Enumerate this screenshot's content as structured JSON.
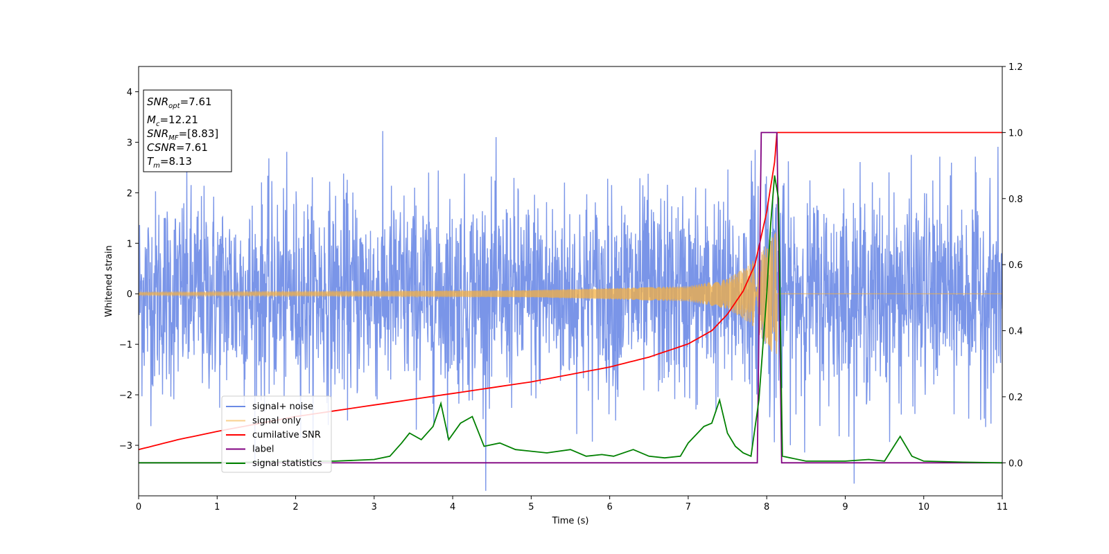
{
  "chart_data": {
    "type": "line",
    "xlabel": "Time (s)",
    "ylabel": "Whitened strain",
    "xlim": [
      0,
      11
    ],
    "ylim_left": [
      -4,
      4.5
    ],
    "ylim_right": [
      -0.1,
      1.2
    ],
    "xticks": [
      "0",
      "1",
      "2",
      "3",
      "4",
      "5",
      "6",
      "7",
      "8",
      "9",
      "10",
      "11"
    ],
    "yticks_left": [
      "−3",
      "−2",
      "−1",
      "0",
      "1",
      "2",
      "3",
      "4"
    ],
    "yticks_right": [
      "0.0",
      "0.2",
      "0.4",
      "0.6",
      "0.8",
      "1.0",
      "1.2"
    ],
    "grid": false,
    "legend_position": "lower-left",
    "annotation": {
      "snr_opt": "=7.61",
      "mc": "=12.21",
      "snr_mf": "=[8.83]",
      "csnr": "=7.61",
      "tm": "=8.13"
    },
    "series": [
      {
        "name": "signal+ noise",
        "axis": "left",
        "color": "#6b8ae5",
        "description_amplitude_std": 1.0,
        "x_range": [
          0,
          11
        ]
      },
      {
        "name": "signal only",
        "axis": "left",
        "color": "#f5b041",
        "chirp_end_time": 8.13,
        "envelope": [
          [
            0,
            0.03
          ],
          [
            5,
            0.07
          ],
          [
            7,
            0.15
          ],
          [
            7.5,
            0.3
          ],
          [
            7.8,
            0.6
          ],
          [
            8.0,
            1.0
          ],
          [
            8.13,
            1.3
          ],
          [
            8.14,
            0
          ],
          [
            11,
            0
          ]
        ]
      },
      {
        "name": "cumilative SNR",
        "axis": "right",
        "color": "#ff0000",
        "x": [
          0,
          0.5,
          1,
          2,
          3,
          4,
          5,
          6,
          6.5,
          7,
          7.3,
          7.5,
          7.7,
          7.85,
          8.0,
          8.1,
          8.13,
          11
        ],
        "y": [
          0.04,
          0.07,
          0.095,
          0.14,
          0.175,
          0.21,
          0.245,
          0.29,
          0.32,
          0.36,
          0.4,
          0.45,
          0.52,
          0.6,
          0.76,
          0.91,
          1.0,
          1.0
        ]
      },
      {
        "name": "label",
        "axis": "right",
        "color": "#800080",
        "x": [
          0,
          7.88,
          7.93,
          8.13,
          8.19,
          11
        ],
        "y": [
          0,
          0,
          1,
          1,
          0,
          0
        ]
      },
      {
        "name": "signal statistics",
        "axis": "right",
        "color": "#008000",
        "x": [
          0,
          1.0,
          2.0,
          2.5,
          3.0,
          3.2,
          3.35,
          3.45,
          3.6,
          3.75,
          3.85,
          3.95,
          4.1,
          4.25,
          4.4,
          4.6,
          4.8,
          5.0,
          5.2,
          5.5,
          5.7,
          5.9,
          6.05,
          6.3,
          6.5,
          6.7,
          6.9,
          7.0,
          7.2,
          7.3,
          7.4,
          7.5,
          7.6,
          7.7,
          7.8,
          7.9,
          8.0,
          8.05,
          8.1,
          8.15,
          8.2,
          8.5,
          9.0,
          9.3,
          9.5,
          9.7,
          9.85,
          10.0,
          10.5,
          11
        ],
        "y": [
          0,
          0,
          0.005,
          0.005,
          0.01,
          0.02,
          0.06,
          0.09,
          0.07,
          0.11,
          0.18,
          0.07,
          0.12,
          0.14,
          0.05,
          0.06,
          0.04,
          0.035,
          0.03,
          0.04,
          0.02,
          0.025,
          0.02,
          0.04,
          0.02,
          0.015,
          0.02,
          0.06,
          0.11,
          0.12,
          0.19,
          0.09,
          0.05,
          0.03,
          0.02,
          0.19,
          0.51,
          0.72,
          0.87,
          0.8,
          0.02,
          0.005,
          0.005,
          0.01,
          0.005,
          0.08,
          0.02,
          0.005,
          0.002,
          0
        ]
      }
    ]
  }
}
